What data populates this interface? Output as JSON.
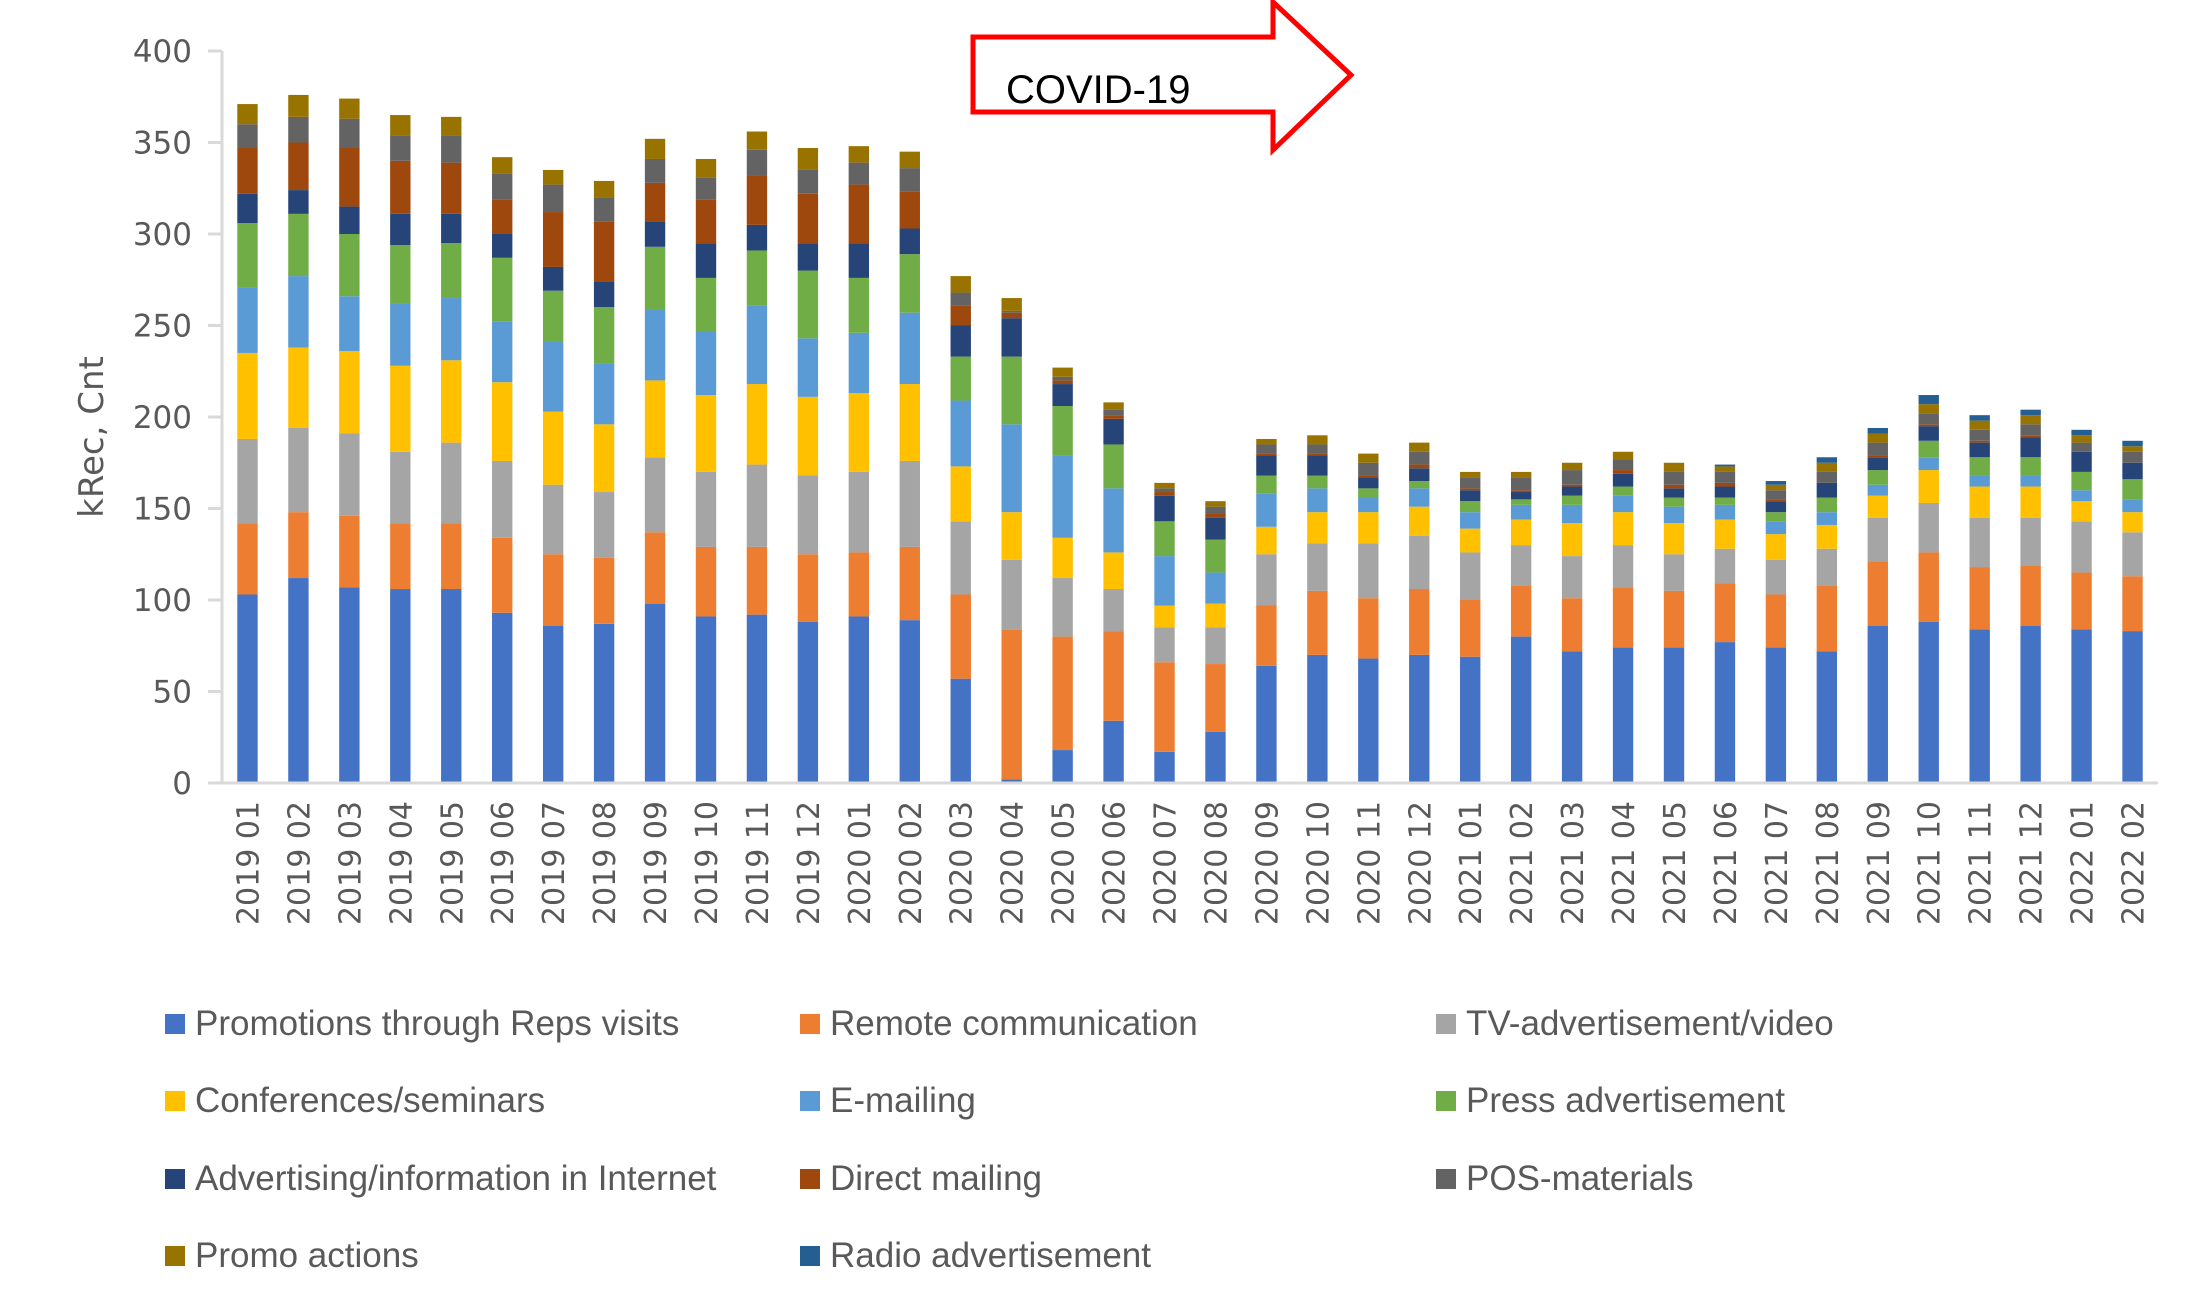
{
  "chart_data": {
    "type": "bar",
    "stacked": true,
    "title": "",
    "xlabel": "",
    "ylabel": "kRec, Cnt",
    "ylim": [
      0,
      400
    ],
    "yticks": [
      0,
      50,
      100,
      150,
      200,
      250,
      300,
      350,
      400
    ],
    "grid": false,
    "legend_position": "bottom",
    "annotation": {
      "text": "COVID-19",
      "shape": "right-arrow",
      "color": "#FF0000"
    },
    "categories": [
      "2019 01",
      "2019 02",
      "2019 03",
      "2019 04",
      "2019 05",
      "2019 06",
      "2019 07",
      "2019 08",
      "2019 09",
      "2019 10",
      "2019 11",
      "2019 12",
      "2020 01",
      "2020 02",
      "2020 03",
      "2020 04",
      "2020 05",
      "2020 06",
      "2020 07",
      "2020 08",
      "2020 09",
      "2020 10",
      "2020 11",
      "2020 12",
      "2021 01",
      "2021 02",
      "2021 03",
      "2021 04",
      "2021 05",
      "2021 06",
      "2021 07",
      "2021 08",
      "2021 09",
      "2021 10",
      "2021 11",
      "2021 12",
      "2022 01",
      "2022 02"
    ],
    "series": [
      {
        "name": "Promotions through Reps visits",
        "color": "#4472C4",
        "values": [
          103,
          112,
          107,
          106,
          106,
          93,
          86,
          87,
          98,
          91,
          92,
          88,
          91,
          89,
          57,
          2,
          18,
          34,
          17,
          28,
          64,
          70,
          68,
          70,
          69,
          80,
          72,
          74,
          74,
          77,
          74,
          72,
          86,
          88,
          84,
          86,
          84,
          83
        ]
      },
      {
        "name": "Remote communication",
        "color": "#ED7D31",
        "values": [
          39,
          36,
          39,
          36,
          36,
          41,
          39,
          36,
          39,
          38,
          37,
          37,
          35,
          40,
          46,
          82,
          62,
          49,
          49,
          37,
          33,
          35,
          33,
          36,
          31,
          28,
          29,
          33,
          31,
          32,
          29,
          36,
          35,
          38,
          34,
          33,
          31,
          30
        ]
      },
      {
        "name": "TV-advertisement/video",
        "color": "#A5A5A5",
        "values": [
          46,
          46,
          45,
          39,
          44,
          42,
          38,
          36,
          41,
          41,
          45,
          43,
          44,
          47,
          40,
          38,
          32,
          23,
          19,
          20,
          28,
          26,
          30,
          29,
          26,
          22,
          23,
          23,
          20,
          19,
          19,
          20,
          24,
          27,
          27,
          26,
          28,
          24
        ]
      },
      {
        "name": "Conferences/seminars",
        "color": "#FFC000",
        "values": [
          47,
          44,
          45,
          47,
          45,
          43,
          40,
          37,
          42,
          42,
          44,
          43,
          43,
          42,
          30,
          26,
          22,
          20,
          12,
          13,
          15,
          17,
          17,
          16,
          13,
          14,
          18,
          18,
          17,
          16,
          14,
          13,
          12,
          18,
          17,
          17,
          11,
          11
        ]
      },
      {
        "name": "E-mailing",
        "color": "#5B9BD5",
        "values": [
          36,
          39,
          30,
          34,
          34,
          33,
          38,
          33,
          39,
          35,
          43,
          32,
          33,
          39,
          36,
          48,
          45,
          35,
          27,
          17,
          18,
          13,
          8,
          10,
          9,
          8,
          10,
          9,
          9,
          8,
          7,
          7,
          6,
          7,
          6,
          6,
          6,
          7
        ]
      },
      {
        "name": "Press advertisement",
        "color": "#70AD47",
        "values": [
          35,
          34,
          34,
          32,
          30,
          35,
          28,
          31,
          34,
          29,
          30,
          37,
          30,
          32,
          24,
          37,
          27,
          24,
          19,
          18,
          10,
          7,
          5,
          4,
          6,
          3,
          5,
          5,
          5,
          4,
          5,
          8,
          8,
          9,
          10,
          10,
          10,
          11
        ]
      },
      {
        "name": "Advertising/information in Internet",
        "color": "#264478",
        "values": [
          16,
          13,
          15,
          17,
          16,
          13,
          13,
          14,
          14,
          19,
          14,
          15,
          19,
          14,
          17,
          21,
          12,
          14,
          14,
          12,
          11,
          11,
          6,
          7,
          6,
          4,
          5,
          7,
          5,
          6,
          6,
          8,
          7,
          8,
          8,
          11,
          11,
          9
        ]
      },
      {
        "name": "Direct mailing",
        "color": "#9E480E",
        "values": [
          25,
          26,
          32,
          29,
          28,
          19,
          30,
          33,
          21,
          24,
          27,
          27,
          32,
          20,
          11,
          3,
          2,
          2,
          2,
          2,
          1,
          1,
          1,
          2,
          1,
          1,
          1,
          2,
          2,
          2,
          1,
          0,
          1,
          1,
          1,
          1,
          0,
          0
        ]
      },
      {
        "name": "POS-materials",
        "color": "#636363",
        "values": [
          13,
          14,
          16,
          14,
          15,
          14,
          15,
          13,
          13,
          12,
          14,
          13,
          12,
          13,
          7,
          1,
          2,
          3,
          2,
          4,
          5,
          5,
          7,
          7,
          6,
          7,
          8,
          6,
          7,
          6,
          5,
          6,
          7,
          6,
          6,
          6,
          5,
          6
        ]
      },
      {
        "name": "Promo actions",
        "color": "#997300",
        "values": [
          11,
          12,
          11,
          11,
          10,
          9,
          8,
          9,
          11,
          10,
          10,
          12,
          9,
          9,
          9,
          7,
          5,
          4,
          3,
          3,
          3,
          5,
          5,
          5,
          3,
          3,
          4,
          4,
          5,
          3,
          3,
          5,
          5,
          5,
          5,
          5,
          4,
          3
        ]
      },
      {
        "name": "Radio advertisement",
        "color": "#255E91",
        "values": [
          0,
          0,
          0,
          0,
          0,
          0,
          0,
          0,
          0,
          0,
          0,
          0,
          0,
          0,
          0,
          0,
          0,
          0,
          0,
          0,
          0,
          0,
          0,
          0,
          0,
          0,
          0,
          0,
          0,
          1,
          2,
          3,
          3,
          5,
          3,
          3,
          3,
          3
        ]
      }
    ]
  }
}
